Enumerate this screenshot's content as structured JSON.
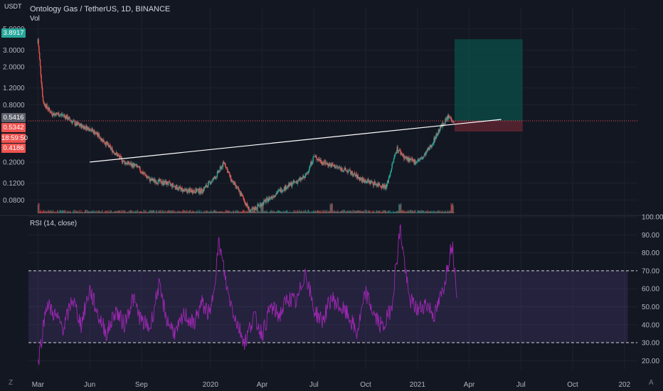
{
  "header": {
    "symbol": "Ontology Gas / TetherUS, 1D, BINANCE",
    "volume_label": "Vol",
    "currency": "USDT"
  },
  "price_badges": {
    "top": "3.8917",
    "current": "0.5416",
    "prev": "0.5342",
    "countdown": "18:59:50",
    "low": "0.4186"
  },
  "rsi_panel": {
    "label": "RSI (14, close)"
  },
  "corners": {
    "bottom_left": "Z",
    "bottom_right": "A"
  },
  "colors": {
    "background": "#131722",
    "rsi_line": "#9c27b0",
    "rsi_band": "#7e57c2",
    "up": "#26a69a",
    "down": "#ef5350",
    "trendline": "#ffffff",
    "target_zone": "#0b4f4a",
    "stop_zone": "#5c2430"
  },
  "chart_data": [
    {
      "type": "candlestick",
      "title": "Ontology Gas / TetherUS, 1D, BINANCE",
      "y_scale": "log",
      "y_ticks": [
        "5.0000",
        "3.0000",
        "2.0000",
        "1.2000",
        "0.8000",
        "0.2000",
        "0.1200",
        "0.0800"
      ],
      "y_tick_values": [
        5.0,
        3.0,
        2.0,
        1.2,
        0.8,
        0.2,
        0.12,
        0.08
      ],
      "x_ticks": [
        "Mar",
        "Jun",
        "Sep",
        "2020",
        "Apr",
        "Jul",
        "Oct",
        "2021",
        "Apr",
        "Jul",
        "Oct",
        "202"
      ],
      "x_tick_months": [
        0,
        3,
        6,
        10,
        13,
        16,
        19,
        22,
        25,
        28,
        31,
        34
      ],
      "start_month": "Feb 2019",
      "series": {
        "months": [
          0,
          0.3,
          0.8,
          1.5,
          2.2,
          3,
          3.5,
          4.2,
          5.0,
          5.7,
          6.5,
          7.5,
          8.5,
          9.5,
          10.3,
          10.8,
          11.2,
          11.8,
          12.3,
          12.8,
          13.3,
          14.0,
          14.8,
          15.5,
          16.0,
          16.5,
          17.2,
          18.0,
          18.8,
          19.5,
          20.2,
          20.8,
          21.3,
          21.8,
          22.3,
          22.8,
          23.3,
          23.8,
          24.1
        ],
        "closes": [
          3.9,
          0.85,
          0.65,
          0.62,
          0.5,
          0.45,
          0.38,
          0.28,
          0.2,
          0.18,
          0.13,
          0.12,
          0.1,
          0.1,
          0.14,
          0.2,
          0.13,
          0.09,
          0.06,
          0.07,
          0.08,
          0.1,
          0.12,
          0.14,
          0.23,
          0.2,
          0.18,
          0.16,
          0.13,
          0.12,
          0.11,
          0.28,
          0.22,
          0.2,
          0.22,
          0.3,
          0.45,
          0.6,
          0.5416
        ]
      },
      "trendline": {
        "from": {
          "month": 3.0,
          "price": 0.2
        },
        "to": {
          "month": 25.0,
          "price": 0.5416
        }
      },
      "position_tool": {
        "entry": 0.5416,
        "target": 3.8917,
        "stop": 0.4186
      },
      "volume": {
        "label": "Vol",
        "spikes_at_months": [
          0,
          13,
          17,
          21,
          24
        ]
      }
    },
    {
      "type": "line",
      "title": "RSI (14, close)",
      "y_ticks": [
        "100.00",
        "90.00",
        "80.00",
        "70.00",
        "60.00",
        "50.00",
        "40.00",
        "30.00",
        "20.00"
      ],
      "y_tick_values": [
        100,
        90,
        80,
        70,
        60,
        50,
        40,
        30,
        20
      ],
      "ylim": [
        15,
        100
      ],
      "bands": {
        "upper": 70,
        "lower": 30
      },
      "series": [
        {
          "months": [
            0,
            0.5,
            1,
            1.5,
            2,
            2.5,
            3,
            3.5,
            4,
            4.5,
            5,
            5.5,
            6,
            6.5,
            7,
            7.5,
            8,
            8.5,
            9,
            9.5,
            10,
            10.5,
            11,
            11.5,
            12,
            12.5,
            13,
            13.5,
            14,
            14.5,
            15,
            15.5,
            16,
            16.5,
            17,
            17.5,
            18,
            18.5,
            19,
            19.5,
            20,
            20.5,
            21,
            21.5,
            22,
            22.5,
            23,
            23.5,
            24,
            24.3
          ],
          "values": [
            18,
            52,
            45,
            38,
            55,
            40,
            60,
            45,
            35,
            48,
            40,
            55,
            42,
            38,
            62,
            42,
            35,
            46,
            40,
            52,
            45,
            86,
            58,
            42,
            30,
            45,
            35,
            50,
            45,
            55,
            52,
            70,
            48,
            42,
            55,
            50,
            45,
            35,
            58,
            45,
            38,
            50,
            94,
            55,
            48,
            52,
            45,
            60,
            86,
            58
          ]
        }
      ]
    }
  ]
}
